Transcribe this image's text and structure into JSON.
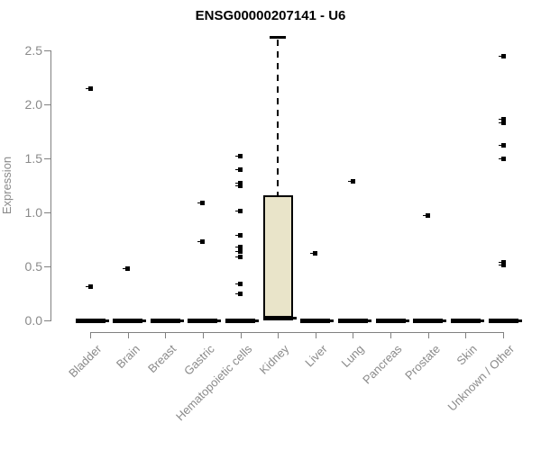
{
  "chart_data": {
    "type": "boxplot",
    "title": "ENSG00000207141 - U6",
    "ylabel": "Expression",
    "ylim": [
      0,
      2.5
    ],
    "yticks": [
      "0.0",
      "0.5",
      "1.0",
      "1.5",
      "2.0",
      "2.5"
    ],
    "grid": false,
    "legend_position": "none",
    "categories": [
      "Bladder",
      "Brain",
      "Breast",
      "Gastric",
      "Hematopoietic cells",
      "Kidney",
      "Liver",
      "Lung",
      "Pancreas",
      "Prostate",
      "Skin",
      "Unknown / Other"
    ],
    "series": [
      {
        "category": "Bladder",
        "median": 0,
        "q1": 0,
        "q3": 0,
        "whisker_low": 0,
        "whisker_high": 0,
        "outliers": [
          2.15,
          0.31
        ]
      },
      {
        "category": "Brain",
        "median": 0,
        "q1": 0,
        "q3": 0,
        "whisker_low": 0,
        "whisker_high": 0,
        "outliers": [
          0.48
        ]
      },
      {
        "category": "Breast",
        "median": 0,
        "q1": 0,
        "q3": 0,
        "whisker_low": 0,
        "whisker_high": 0,
        "outliers": []
      },
      {
        "category": "Gastric",
        "median": 0,
        "q1": 0,
        "q3": 0,
        "whisker_low": 0,
        "whisker_high": 0,
        "outliers": [
          1.09,
          0.73
        ]
      },
      {
        "category": "Hematopoietic cells",
        "median": 0,
        "q1": 0,
        "q3": 0,
        "whisker_low": 0,
        "whisker_high": 0,
        "outliers": [
          1.52,
          1.4,
          1.27,
          1.25,
          1.01,
          0.79,
          0.68,
          0.64,
          0.59,
          0.34,
          0.25
        ]
      },
      {
        "category": "Kidney",
        "median": 0.02,
        "q1": 0.02,
        "q3": 1.16,
        "whisker_low": 0,
        "whisker_high": 2.62,
        "outliers": []
      },
      {
        "category": "Liver",
        "median": 0,
        "q1": 0,
        "q3": 0,
        "whisker_low": 0,
        "whisker_high": 0,
        "outliers": [
          0.62
        ]
      },
      {
        "category": "Lung",
        "median": 0,
        "q1": 0,
        "q3": 0,
        "whisker_low": 0,
        "whisker_high": 0,
        "outliers": [
          1.29
        ]
      },
      {
        "category": "Pancreas",
        "median": 0,
        "q1": 0,
        "q3": 0,
        "whisker_low": 0,
        "whisker_high": 0,
        "outliers": []
      },
      {
        "category": "Prostate",
        "median": 0,
        "q1": 0,
        "q3": 0,
        "whisker_low": 0,
        "whisker_high": 0,
        "outliers": [
          0.97
        ]
      },
      {
        "category": "Skin",
        "median": 0,
        "q1": 0,
        "q3": 0,
        "whisker_low": 0,
        "whisker_high": 0,
        "outliers": []
      },
      {
        "category": "Unknown / Other",
        "median": 0,
        "q1": 0,
        "q3": 0,
        "whisker_low": 0,
        "whisker_high": 0,
        "outliers": [
          2.45,
          1.86,
          1.83,
          1.62,
          1.5,
          0.54,
          0.51
        ]
      }
    ],
    "colors": {
      "box_fill": "#e9e4c9",
      "box_border": "#000000",
      "median_bar": "#000000",
      "point": "#000000",
      "axis": "#808080",
      "tick_label": "#8a8a8a",
      "title": "#000000",
      "background": "#ffffff"
    }
  }
}
